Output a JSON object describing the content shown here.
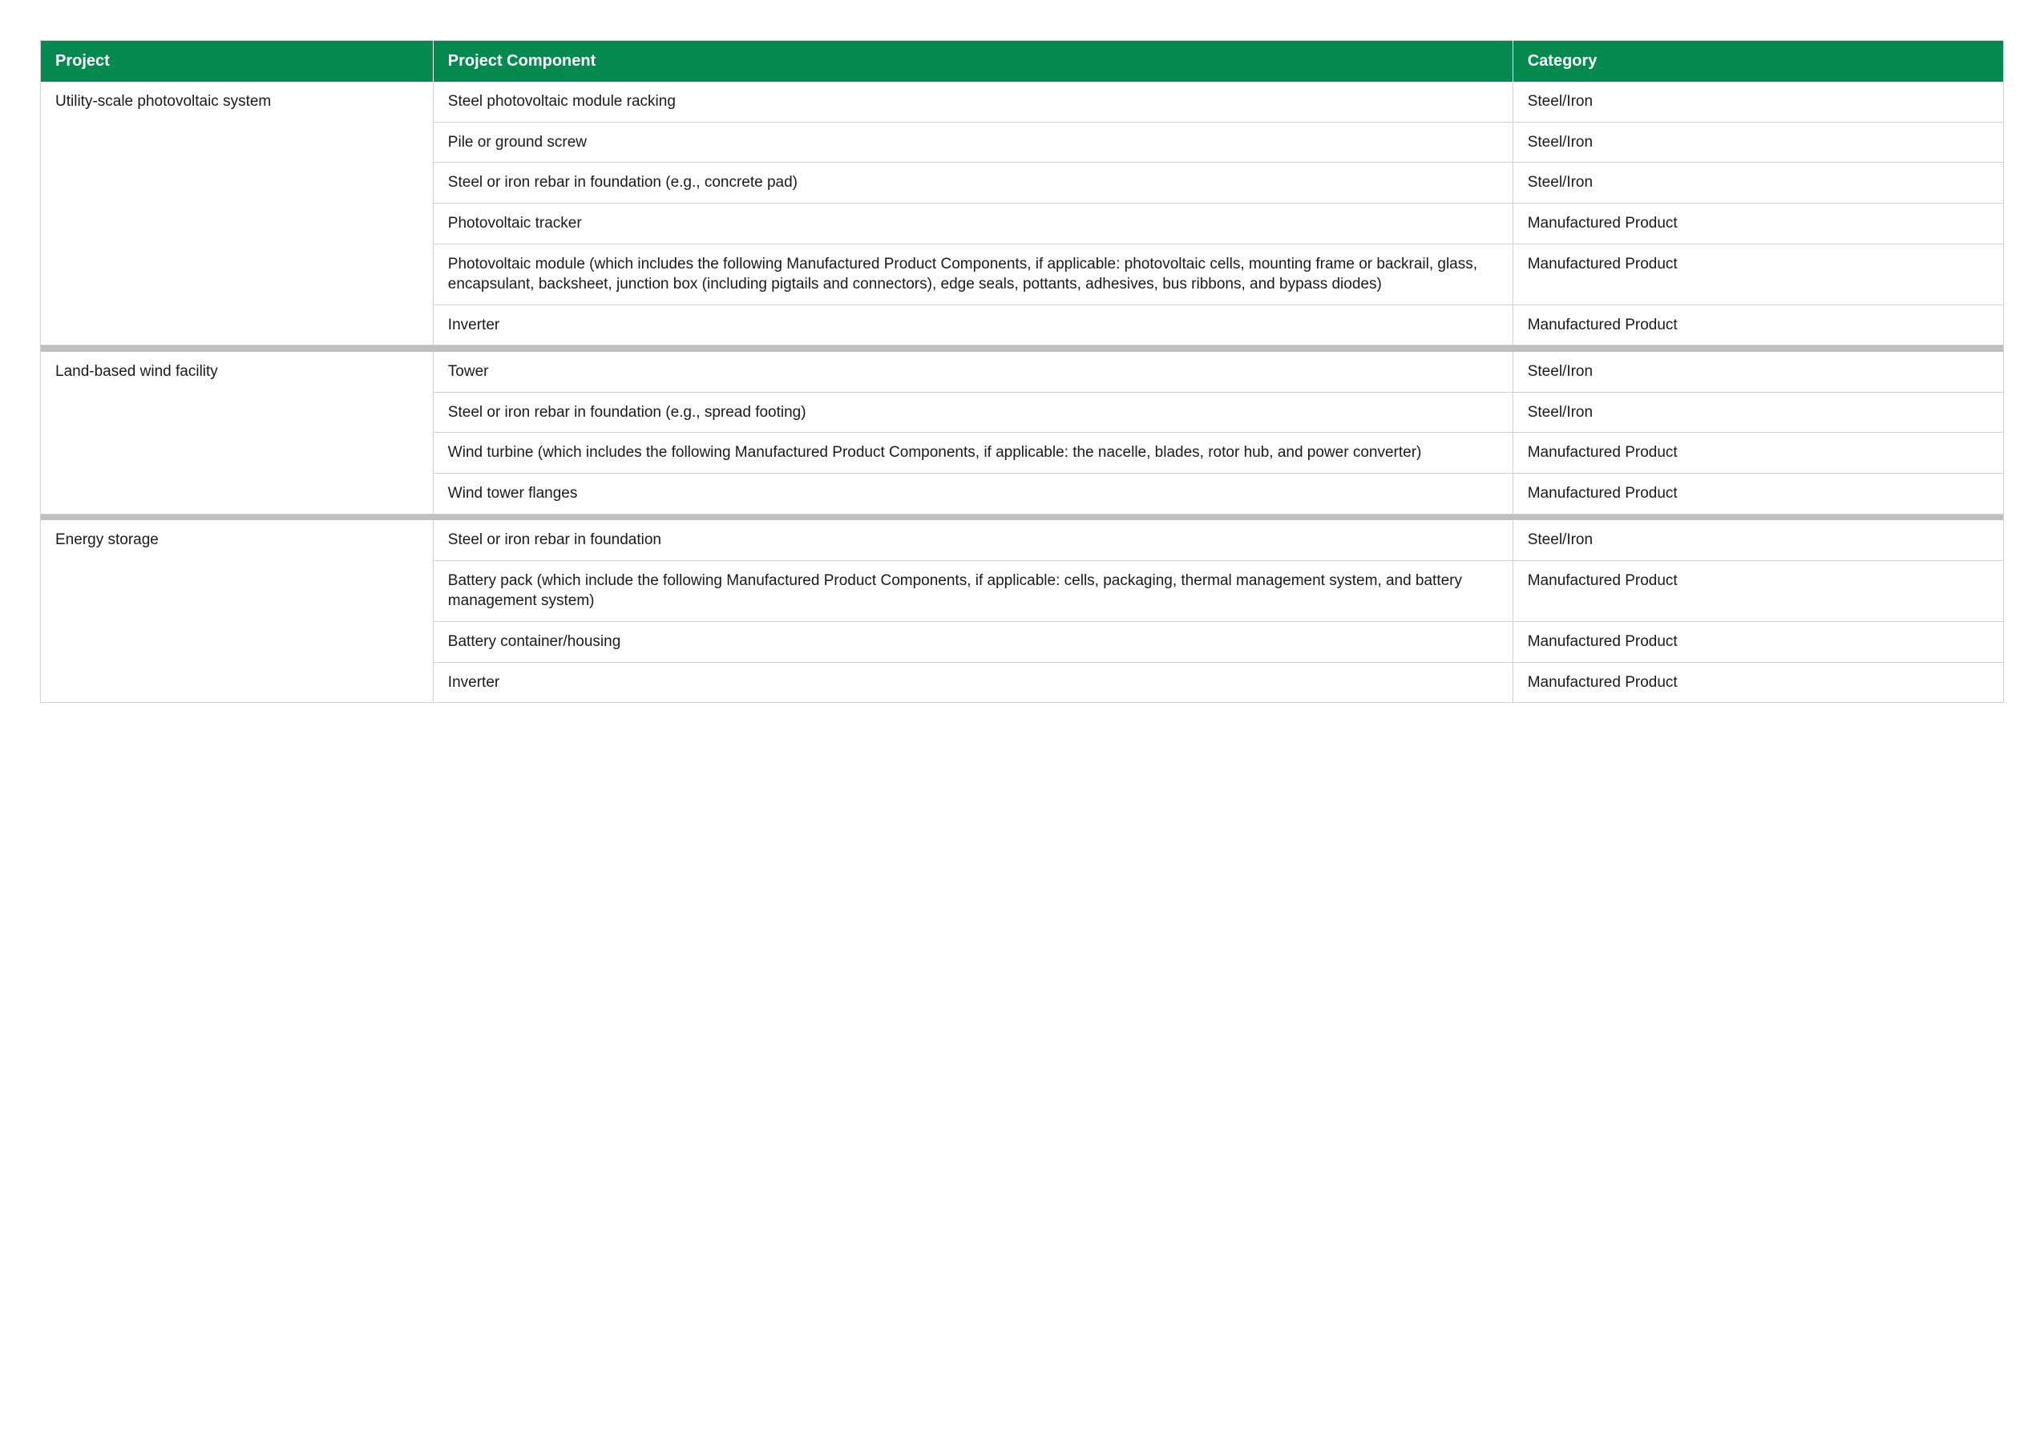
{
  "colors": {
    "header_bg": "#048a4f",
    "header_text": "#ffffff",
    "row_border": "#d0d0d0",
    "separator_bg": "#bfbfbf",
    "body_text": "#1a1a1a",
    "page_bg": "#ffffff"
  },
  "typography": {
    "header_fontsize_pt": 15,
    "body_fontsize_pt": 14,
    "header_weight": "600"
  },
  "layout": {
    "col_widths_pct": [
      20,
      55,
      25
    ]
  },
  "columns": [
    "Project",
    "Project Component",
    "Category"
  ],
  "groups": [
    {
      "project": "Utility-scale photovoltaic system",
      "rows": [
        {
          "component": "Steel photovoltaic module racking",
          "category": "Steel/Iron"
        },
        {
          "component": "Pile or ground screw",
          "category": "Steel/Iron"
        },
        {
          "component": "Steel or iron rebar in foundation (e.g., concrete pad)",
          "category": "Steel/Iron"
        },
        {
          "component": "Photovoltaic tracker",
          "category": "Manufactured Product"
        },
        {
          "component": "Photovoltaic module (which includes the following Manufactured Product Components, if applicable: photovoltaic cells, mounting frame or backrail, glass, encapsulant, backsheet, junction box (including pigtails and connectors), edge seals, pottants, adhesives, bus ribbons, and bypass diodes)",
          "category": "Manufactured Product"
        },
        {
          "component": "Inverter",
          "category": "Manufactured Product"
        }
      ]
    },
    {
      "project": "Land-based wind facility",
      "rows": [
        {
          "component": "Tower",
          "category": "Steel/Iron"
        },
        {
          "component": "Steel or iron rebar in foundation (e.g., spread footing)",
          "category": "Steel/Iron"
        },
        {
          "component": "Wind turbine (which includes the following Manufactured Product Components, if applicable: the nacelle, blades, rotor hub, and power converter)",
          "category": "Manufactured Product"
        },
        {
          "component": "Wind tower flanges",
          "category": "Manufactured Product"
        }
      ]
    },
    {
      "project": "Energy storage",
      "rows": [
        {
          "component": "Steel or iron rebar in foundation",
          "category": "Steel/Iron"
        },
        {
          "component": "Battery pack (which include the following Manufactured Product Components, if applicable: cells, packaging, thermal management system, and battery management system)",
          "category": "Manufactured Product"
        },
        {
          "component": "Battery container/housing",
          "category": "Manufactured Product"
        },
        {
          "component": "Inverter",
          "category": "Manufactured Product"
        }
      ]
    }
  ]
}
